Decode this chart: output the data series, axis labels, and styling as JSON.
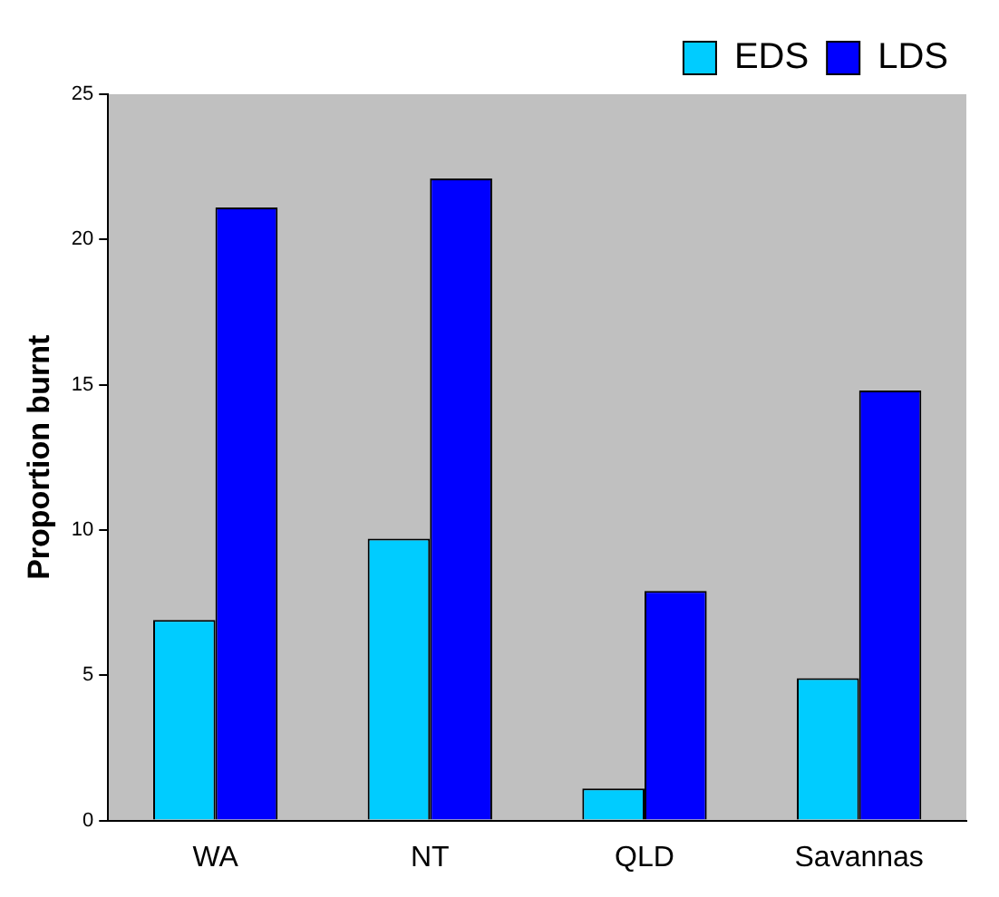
{
  "chart_data": {
    "type": "bar",
    "ylabel": "Proportion burnt",
    "categories": [
      "WA",
      "NT",
      "QLD",
      "Savannas"
    ],
    "series": [
      {
        "name": "EDS",
        "color": "#00ccff",
        "values": [
          6.9,
          9.7,
          1.1,
          4.9
        ]
      },
      {
        "name": "LDS",
        "color": "#0000ff",
        "values": [
          21.1,
          22.1,
          7.9,
          14.8
        ]
      }
    ],
    "ylim": [
      0,
      25
    ],
    "yticks": [
      0,
      5,
      10,
      15,
      20,
      25
    ],
    "grid": false,
    "legend": "top right"
  }
}
